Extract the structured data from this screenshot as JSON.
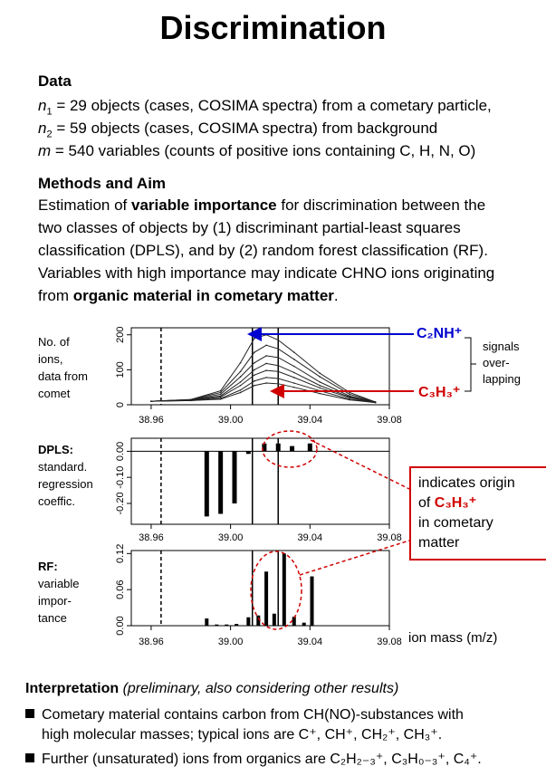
{
  "title": "Discrimination",
  "data_section": {
    "heading": "Data",
    "n1_var": "n",
    "n1_sub": "1",
    "n1_text": " = 29 objects (cases, COSIMA spectra) from a cometary particle,",
    "n2_var": "n",
    "n2_sub": "2",
    "n2_text": " = 59 objects (cases, COSIMA spectra) from background",
    "m_var": "m",
    "m_text": " = 540 variables (counts of positive ions containing C, H, N, O)"
  },
  "methods": {
    "heading": "Methods  and Aim",
    "l1a": "Estimation of ",
    "l1b": "variable importance",
    "l1c": " for discrimination between the",
    "l2": "two classes of objects by (1) discriminant partial-least squares",
    "l3": "classification (DPLS), and by (2) random forest classification (RF).",
    "l4": "Variables with high importance may indicate CHNO ions originating",
    "l5a": "from ",
    "l5b": "organic material in cometary matter",
    "l5c": "."
  },
  "panel1": {
    "label_lines": [
      "No. of",
      "ions,",
      "data from",
      "comet"
    ],
    "yticks": [
      "0",
      "100",
      "200"
    ],
    "xticks": [
      "38.96",
      "39.00",
      "39.04",
      "39.08"
    ]
  },
  "panel2": {
    "label_lines": [
      "DPLS:",
      "standard.",
      "regression",
      "coeffic."
    ],
    "yticks": [
      "-0.20",
      "-0.10",
      "0.00"
    ],
    "xticks": [
      "38.96",
      "39.00",
      "39.04",
      "39.08"
    ]
  },
  "panel3": {
    "label_lines": [
      "RF:",
      "variable",
      "impor-",
      "tance"
    ],
    "yticks": [
      "0.00",
      "0.06",
      "0.12"
    ],
    "xticks": [
      "38.96",
      "39.00",
      "39.04",
      "39.08"
    ]
  },
  "annotations": {
    "c2nh": "C₂NH⁺",
    "c3h3": "C₃H₃⁺",
    "signals": [
      "signals",
      "over-",
      "lapping"
    ],
    "box_l1": "indicates origin",
    "box_l2a": "of ",
    "box_l2b": "C₃H₃⁺",
    "box_l3": "in cometary",
    "box_l4": "matter",
    "xlabel": "ion mass (m/z)"
  },
  "interpretation": {
    "heading": "Interpretation",
    "heading_note": " (preliminary, also considering other results)",
    "b1_l1": "Cometary material contains carbon from CH(NO)-substances with",
    "b1_l2": "high molecular masses; typical ions are C⁺, CH⁺, CH₂⁺, CH₃⁺.",
    "b2": "Further (unsaturated) ions from organics are C₂H₂₋₃⁺, C₃H₀₋₃⁺, C₄⁺."
  },
  "chart_data": [
    {
      "type": "line",
      "xlabel": "ion mass (m/z)",
      "ylabel": "No. of ions, data from comet",
      "xlim": [
        38.95,
        39.08
      ],
      "ylim": [
        0,
        220
      ],
      "dashed_vline_x": 38.965,
      "vlines_x": [
        39.011,
        39.024
      ],
      "x": [
        38.96,
        38.98,
        38.995,
        39.005,
        39.012,
        39.018,
        39.024,
        39.032,
        39.045,
        39.06,
        39.073
      ],
      "series": [
        {
          "values": [
            10,
            15,
            40,
            120,
            190,
            200,
            185,
            150,
            90,
            35,
            8
          ]
        },
        {
          "values": [
            10,
            15,
            35,
            95,
            150,
            170,
            160,
            130,
            80,
            30,
            8
          ]
        },
        {
          "values": [
            10,
            14,
            30,
            80,
            120,
            140,
            135,
            110,
            65,
            25,
            7
          ]
        },
        {
          "values": [
            10,
            14,
            25,
            65,
            100,
            118,
            112,
            92,
            55,
            22,
            7
          ]
        },
        {
          "values": [
            10,
            13,
            22,
            55,
            85,
            98,
            95,
            78,
            48,
            20,
            6
          ]
        },
        {
          "values": [
            10,
            12,
            18,
            42,
            68,
            78,
            75,
            62,
            40,
            16,
            6
          ]
        },
        {
          "values": [
            10,
            12,
            16,
            35,
            55,
            62,
            60,
            50,
            32,
            14,
            6
          ]
        }
      ]
    },
    {
      "type": "bar",
      "ylabel": "DPLS: standard. regression coeffic.",
      "xlim": [
        38.95,
        39.08
      ],
      "ylim": [
        -0.28,
        0.05
      ],
      "x": [
        38.988,
        38.995,
        39.002,
        39.009,
        39.017,
        39.024,
        39.031,
        39.04
      ],
      "values": [
        -0.25,
        -0.24,
        -0.2,
        -0.01,
        0.03,
        0.03,
        0.02,
        0.03
      ]
    },
    {
      "type": "bar",
      "ylabel": "RF: variable impor- tance",
      "xlim": [
        38.95,
        39.08
      ],
      "ylim": [
        0,
        0.125
      ],
      "x": [
        38.988,
        38.993,
        38.998,
        39.003,
        39.009,
        39.014,
        39.018,
        39.022,
        39.027,
        39.032,
        39.037,
        39.041
      ],
      "values": [
        0.012,
        0.002,
        0.002,
        0.003,
        0.014,
        0.017,
        0.09,
        0.02,
        0.12,
        0.015,
        0.005,
        0.082
      ]
    }
  ]
}
